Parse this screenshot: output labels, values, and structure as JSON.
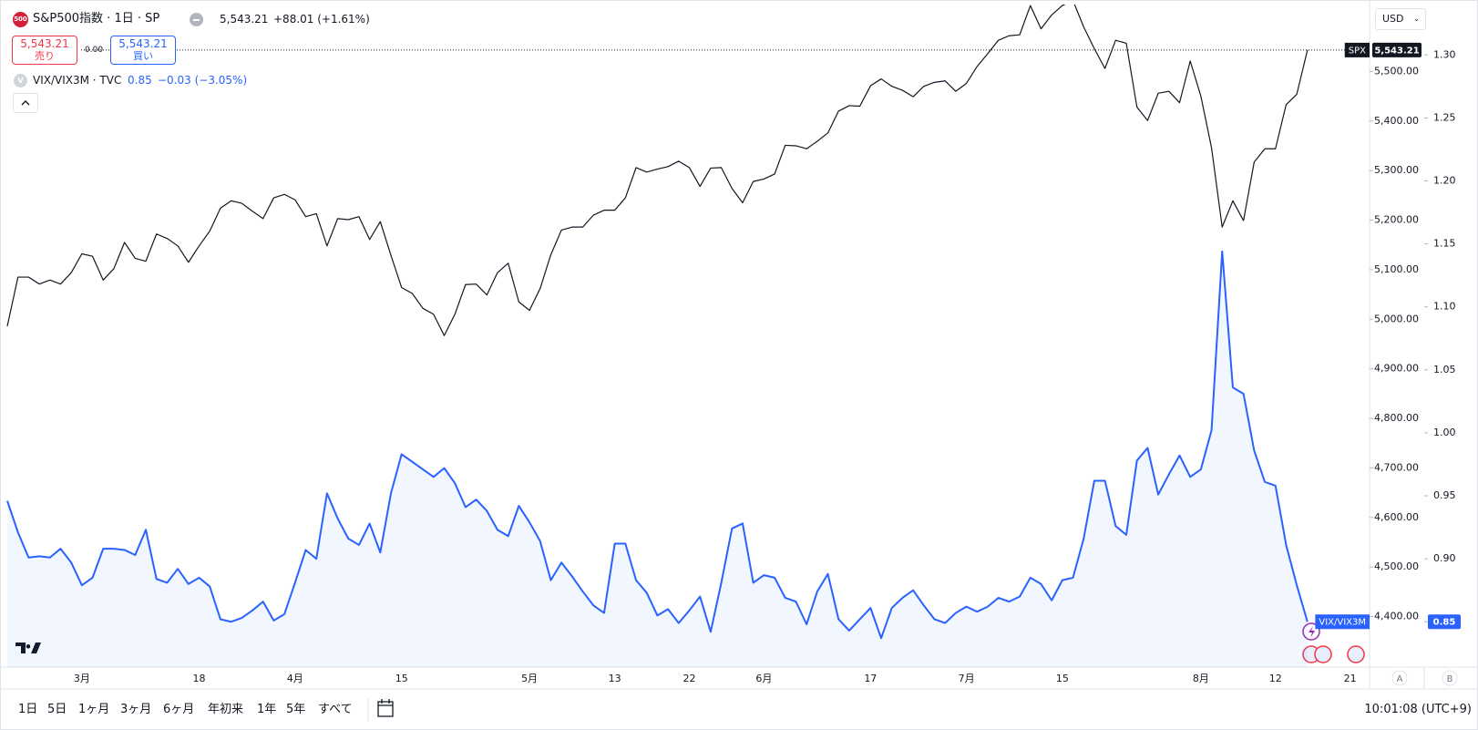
{
  "header": {
    "badge": "500",
    "symbol": "S&P500指数 · 1日 · SP",
    "quote": "5,543.21",
    "change": "+88.01 (+1.61%)",
    "sell_price": "5,543.21",
    "sell": "売り",
    "spread": "0.00",
    "buy_price": "5,543.21",
    "buy": "買い",
    "currency": "USD"
  },
  "indicator": {
    "badge": "V",
    "name": "VIX/VIX3M · TVC",
    "quote": "0.85",
    "change": "−0.03 (−3.05%)"
  },
  "chart_data": {
    "type": "line",
    "categories": [
      null,
      null,
      null,
      null,
      null,
      null,
      null,
      "3月",
      null,
      null,
      null,
      null,
      null,
      null,
      null,
      null,
      null,
      null,
      "18",
      null,
      null,
      null,
      null,
      null,
      null,
      null,
      null,
      "4月",
      null,
      null,
      null,
      null,
      null,
      null,
      null,
      null,
      null,
      "15",
      null,
      null,
      null,
      null,
      null,
      null,
      null,
      null,
      null,
      null,
      null,
      "5月",
      null,
      null,
      null,
      null,
      null,
      null,
      null,
      "13",
      null,
      null,
      null,
      null,
      null,
      null,
      "22",
      null,
      null,
      null,
      null,
      null,
      null,
      "6月",
      null,
      null,
      null,
      null,
      null,
      null,
      null,
      null,
      null,
      "17",
      null,
      null,
      null,
      null,
      null,
      null,
      null,
      null,
      "7月",
      null,
      null,
      null,
      null,
      null,
      null,
      null,
      null,
      "15",
      null,
      null,
      null,
      null,
      null,
      null,
      null,
      null,
      null,
      null,
      null,
      null,
      "8月",
      null,
      null,
      null,
      null,
      null,
      null,
      "12",
      null,
      null,
      null,
      null,
      null,
      null,
      "21",
      null
    ],
    "series": [
      {
        "name": "SPX",
        "color": "#131722",
        "axis": "y",
        "price_line": true,
        "last_label": "5,543.21",
        "values": [
          4986,
          5085,
          5085,
          5071,
          5079,
          5071,
          5094,
          5132,
          5127,
          5079,
          5102,
          5155,
          5123,
          5117,
          5172,
          5163,
          5148,
          5115,
          5148,
          5178,
          5224,
          5239,
          5234,
          5218,
          5203,
          5245,
          5252,
          5241,
          5207,
          5213,
          5148,
          5203,
          5201,
          5207,
          5161,
          5197,
          5129,
          5064,
          5052,
          5022,
          5010,
          4967,
          5010,
          5070,
          5071,
          5049,
          5094,
          5113,
          5035,
          5018,
          5062,
          5130,
          5180,
          5186,
          5186,
          5210,
          5220,
          5220,
          5245,
          5306,
          5297,
          5303,
          5308,
          5319,
          5306,
          5268,
          5305,
          5306,
          5264,
          5235,
          5278,
          5283,
          5293,
          5351,
          5350,
          5344,
          5359,
          5376,
          5420,
          5431,
          5430,
          5471,
          5485,
          5470,
          5462,
          5449,
          5470,
          5478,
          5481,
          5460,
          5476,
          5510,
          5536,
          5563,
          5572,
          5574,
          5633,
          5586,
          5614,
          5633,
          5643,
          5590,
          5546,
          5506,
          5563,
          5557,
          5428,
          5401,
          5456,
          5460,
          5437,
          5521,
          5450,
          5346,
          5186,
          5239,
          5199,
          5317,
          5344,
          5344,
          5433,
          5454,
          5543.21,
          null,
          null,
          null,
          null,
          null
        ]
      },
      {
        "name": "VIX/VIX3M",
        "color": "#2962ff",
        "axis": "y2",
        "area": true,
        "values": [
          0.946,
          0.921,
          0.901,
          0.902,
          0.901,
          0.908,
          0.897,
          0.879,
          0.885,
          0.908,
          0.908,
          0.907,
          0.903,
          0.923,
          0.884,
          0.881,
          0.892,
          0.88,
          0.885,
          0.878,
          0.852,
          0.85,
          0.853,
          0.859,
          0.866,
          0.851,
          0.856,
          0.881,
          0.907,
          0.9,
          0.952,
          0.932,
          0.916,
          0.911,
          0.928,
          0.905,
          0.952,
          0.983,
          0.977,
          0.971,
          0.965,
          0.972,
          0.96,
          0.941,
          0.947,
          0.938,
          0.923,
          0.918,
          0.942,
          0.929,
          0.914,
          0.883,
          0.897,
          0.886,
          0.874,
          0.863,
          0.857,
          0.912,
          0.912,
          0.883,
          0.873,
          0.855,
          0.86,
          0.849,
          0.859,
          0.87,
          0.842,
          0.881,
          0.924,
          0.928,
          0.881,
          0.887,
          0.885,
          0.869,
          0.866,
          0.848,
          0.874,
          0.888,
          0.852,
          0.843,
          0.852,
          0.861,
          0.837,
          0.861,
          0.869,
          0.875,
          0.863,
          0.852,
          0.849,
          0.857,
          0.862,
          0.858,
          0.862,
          0.869,
          0.866,
          0.87,
          0.885,
          0.88,
          0.867,
          0.883,
          0.885,
          0.916,
          0.962,
          0.962,
          0.926,
          0.919,
          0.978,
          0.988,
          0.951,
          0.967,
          0.982,
          0.965,
          0.971,
          1.002,
          1.144,
          1.036,
          1.031,
          0.986,
          0.961,
          0.958,
          0.911,
          0.879,
          0.85,
          null,
          null,
          null,
          null,
          null
        ]
      }
    ],
    "ylim": [
      4298,
      5635
    ],
    "yticks": [
      {
        "value": 4400,
        "label": "4,400.00"
      },
      {
        "value": 4500,
        "label": "4,500.00"
      },
      {
        "value": 4600,
        "label": "4,600.00"
      },
      {
        "value": 4700,
        "label": "4,700.00"
      },
      {
        "value": 4800,
        "label": "4,800.00"
      },
      {
        "value": 4900,
        "label": "4,900.00"
      },
      {
        "value": 5000,
        "label": "5,000.00"
      },
      {
        "value": 5100,
        "label": "5,100.00"
      },
      {
        "value": 5200,
        "label": "5,200.00"
      },
      {
        "value": 5300,
        "label": "5,300.00"
      },
      {
        "value": 5400,
        "label": "5,400.00"
      },
      {
        "value": 5500,
        "label": "5,500.00"
      }
    ],
    "y2lim": [
      0.814,
      1.34
    ],
    "y2ticks": [
      0.85,
      {
        "value": 0.9,
        "label": "0.90"
      },
      0.95,
      {
        "value": 1,
        "label": "1.00"
      },
      1.05,
      {
        "value": 1.1,
        "label": "1.10"
      },
      1.15,
      {
        "value": 1.2,
        "label": "1.20"
      },
      1.25,
      {
        "value": 1.3,
        "label": "1.30"
      }
    ],
    "grid": false
  },
  "axis_buttons": [
    "A",
    "B"
  ],
  "toolbar": {
    "ranges": [
      "1日",
      "5日",
      "1ヶ月",
      "3ヶ月",
      "6ヶ月",
      "年初来",
      "1年",
      "5年",
      "すべて"
    ],
    "clock": "10:01:08 (UTC+9)"
  }
}
